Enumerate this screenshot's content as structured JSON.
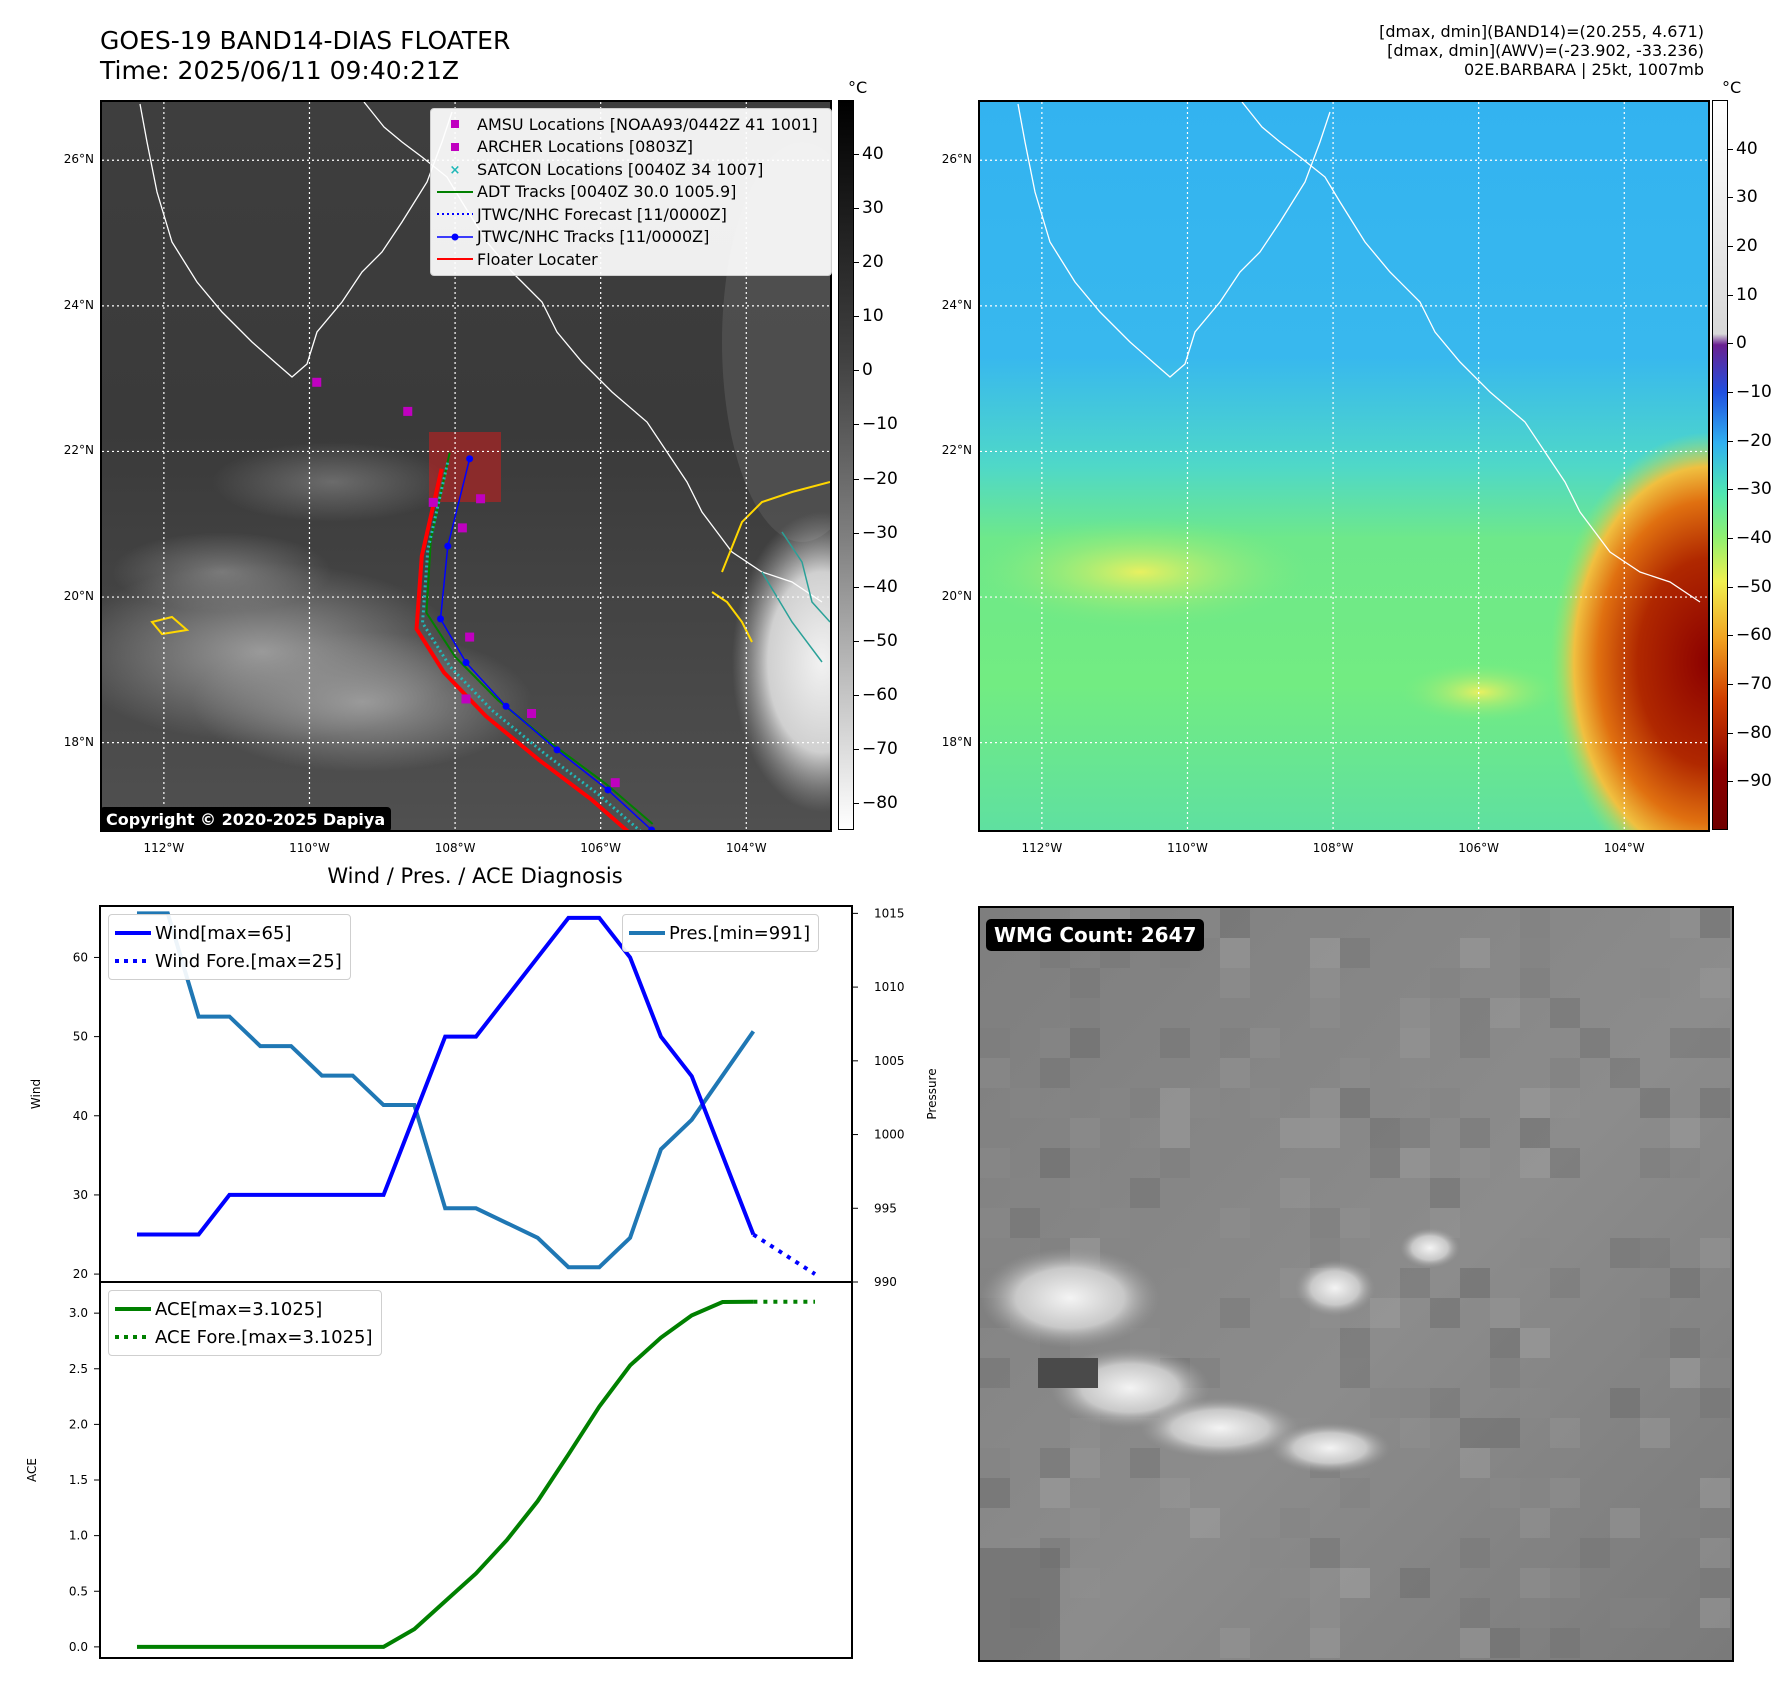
{
  "header": {
    "title": "GOES-19 BAND14-DIAS FLOATER",
    "time": "Time: 2025/06/11 09:40:21Z",
    "stats_line1": "[dmax, dmin](BAND14)=(20.255, 4.671)",
    "stats_line2": "[dmax, dmin](AWV)=(-23.902, -33.236)",
    "stats_line3": "02E.BARBARA | 25kt, 1007mb"
  },
  "map": {
    "lat_ticks": [
      "26°N",
      "24°N",
      "22°N",
      "20°N",
      "18°N"
    ],
    "lat_values": [
      26,
      24,
      22,
      20,
      18
    ],
    "lon_ticks": [
      "112°W",
      "110°W",
      "108°W",
      "106°W",
      "104°W"
    ],
    "lon_values": [
      -112,
      -110,
      -108,
      -106,
      -104
    ],
    "extent": {
      "lon": [
        -112.85,
        -102.85
      ],
      "lat": [
        16.8,
        26.8
      ]
    },
    "copyright": "Copyright © 2020-2025 Dapiya",
    "legend": [
      {
        "label": "AMSU Locations [NOAA93/0442Z 41 1001]",
        "color": "#c000c0",
        "marker": "square"
      },
      {
        "label": "ARCHER Locations [0803Z]",
        "color": "#c000c0",
        "marker": "square"
      },
      {
        "label": "SATCON Locations [0040Z 34 1007]",
        "color": "#20b8b8",
        "marker": "x"
      },
      {
        "label": "ADT Tracks [0040Z 30.0 1005.9]",
        "color": "#008000",
        "marker": "line"
      },
      {
        "label": "JTWC/NHC Forecast [11/0000Z]",
        "color": "#0000ff",
        "marker": "dotted"
      },
      {
        "label": "JTWC/NHC Tracks [11/0000Z]",
        "color": "#0000ff",
        "marker": "line-dot"
      },
      {
        "label": "Floater Locater",
        "color": "#ff0000",
        "marker": "line"
      }
    ],
    "amsu_points": [
      [
        -109.9,
        22.95
      ],
      [
        -108.65,
        22.55
      ],
      [
        -108.3,
        21.3
      ],
      [
        -107.65,
        21.35
      ],
      [
        -107.9,
        20.95
      ],
      [
        -107.8,
        19.45
      ],
      [
        -107.85,
        18.6
      ],
      [
        -106.95,
        18.4
      ],
      [
        -105.8,
        17.45
      ]
    ],
    "nhc_track": [
      [
        -107.8,
        21.9
      ],
      [
        -108.1,
        20.7
      ],
      [
        -108.2,
        19.7
      ],
      [
        -107.85,
        19.1
      ],
      [
        -107.3,
        18.5
      ],
      [
        -106.6,
        17.9
      ],
      [
        -105.9,
        17.35
      ],
      [
        -105.3,
        16.8
      ]
    ]
  },
  "colorbar_ir": {
    "unit": "°C",
    "ticks": [
      "40",
      "30",
      "20",
      "10",
      "0",
      "−10",
      "−20",
      "−30",
      "−40",
      "−50",
      "−60",
      "−70",
      "−80"
    ],
    "values": [
      40,
      30,
      20,
      10,
      0,
      -10,
      -20,
      -30,
      -40,
      -50,
      -60,
      -70,
      -80
    ],
    "range": [
      -85,
      50
    ]
  },
  "colorbar_wv": {
    "unit": "°C",
    "ticks": [
      "40",
      "30",
      "20",
      "10",
      "0",
      "−10",
      "−20",
      "−30",
      "−40",
      "−50",
      "−60",
      "−70",
      "−80",
      "−90"
    ],
    "values": [
      40,
      30,
      20,
      10,
      0,
      -10,
      -20,
      -30,
      -40,
      -50,
      -60,
      -70,
      -80,
      -90
    ],
    "range": [
      -100,
      50
    ]
  },
  "diagnosis": {
    "title": "Wind / Pres. / ACE Diagnosis",
    "wind_label": "Wind",
    "pressure_label": "Pressure",
    "ace_label": "ACE"
  },
  "wmg": {
    "label": "WMG Count: 2647"
  },
  "chart_data": [
    {
      "type": "line",
      "title": "Wind / Pres. / ACE Diagnosis",
      "ylabel": "Wind",
      "y2label": "Pressure",
      "x": [
        0,
        1,
        2,
        3,
        4,
        5,
        6,
        7,
        8,
        9,
        10,
        11,
        12,
        13,
        14,
        15,
        16,
        17,
        18,
        19,
        20,
        21,
        22
      ],
      "ylim": [
        19,
        66.5
      ],
      "y2lim": [
        990,
        1015.5
      ],
      "yticks": [
        20,
        30,
        40,
        50,
        60
      ],
      "y2ticks": [
        990,
        995,
        1000,
        1005,
        1010,
        1015
      ],
      "series": [
        {
          "name": "Wind[max=65]",
          "axis": "left",
          "color": "#0000ff",
          "style": "solid",
          "x": [
            0,
            1,
            2,
            3,
            4,
            5,
            6,
            7,
            8,
            9,
            10,
            11,
            12,
            13,
            14,
            15,
            16,
            17,
            18,
            19,
            20
          ],
          "values": [
            25,
            25,
            25,
            30,
            30,
            30,
            30,
            30,
            30,
            40,
            50,
            50,
            55,
            60,
            65,
            65,
            60,
            50,
            45,
            35,
            25
          ]
        },
        {
          "name": "Wind Fore.[max=25]",
          "axis": "left",
          "color": "#0000ff",
          "style": "dotted",
          "x": [
            20,
            22
          ],
          "values": [
            25,
            20
          ]
        },
        {
          "name": "Pres.[min=991]",
          "axis": "right",
          "color": "#1f77b4",
          "style": "solid",
          "x": [
            0,
            1,
            2,
            3,
            4,
            5,
            6,
            7,
            8,
            9,
            10,
            11,
            12,
            13,
            14,
            15,
            16,
            17,
            18,
            19,
            20
          ],
          "values": [
            1015,
            1015,
            1008,
            1008,
            1006,
            1006,
            1004,
            1004,
            1002,
            1002,
            995,
            995,
            994,
            993,
            991,
            991,
            993,
            999,
            1001,
            1004,
            1007
          ]
        }
      ]
    },
    {
      "type": "line",
      "ylabel": "ACE",
      "x": [
        0,
        1,
        2,
        3,
        4,
        5,
        6,
        7,
        8,
        9,
        10,
        11,
        12,
        13,
        14,
        15,
        16,
        17,
        18,
        19,
        20,
        21,
        22
      ],
      "ylim": [
        -0.1,
        3.28
      ],
      "yticks": [
        0.0,
        0.5,
        1.0,
        1.5,
        2.0,
        2.5,
        3.0
      ],
      "series": [
        {
          "name": "ACE[max=3.1025]",
          "color": "#008000",
          "style": "solid",
          "x": [
            0,
            1,
            2,
            3,
            4,
            5,
            6,
            7,
            8,
            9,
            10,
            11,
            12,
            13,
            14,
            15,
            16,
            17,
            18,
            19,
            20
          ],
          "values": [
            0,
            0,
            0,
            0,
            0,
            0,
            0,
            0,
            0,
            0.16,
            0.41,
            0.66,
            0.96,
            1.31,
            1.73,
            2.16,
            2.53,
            2.78,
            2.98,
            3.1,
            3.1025
          ]
        },
        {
          "name": "ACE Fore.[max=3.1025]",
          "color": "#008000",
          "style": "dotted",
          "x": [
            20,
            22
          ],
          "values": [
            3.1025,
            3.1025
          ]
        }
      ]
    }
  ]
}
